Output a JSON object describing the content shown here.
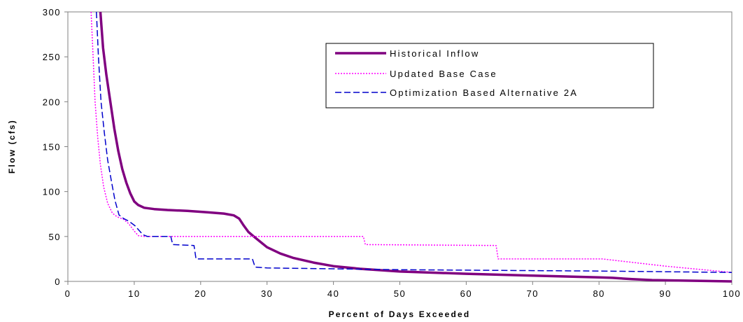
{
  "chart_data": {
    "type": "line",
    "title": "",
    "xlabel": "Percent of Days Exceeded",
    "ylabel": "Flow (cfs)",
    "xlim": [
      0,
      100
    ],
    "ylim": [
      0,
      300
    ],
    "x_ticks": [
      0,
      10,
      20,
      30,
      40,
      50,
      60,
      70,
      80,
      90,
      100
    ],
    "y_ticks": [
      0,
      50,
      100,
      150,
      200,
      250,
      300
    ],
    "grid": false,
    "legend_position": "top-right",
    "series": [
      {
        "name": "Historical Inflow",
        "color": "#800080",
        "style": "solid-thick",
        "points": [
          [
            4.9,
            300
          ],
          [
            5.3,
            260
          ],
          [
            5.8,
            230
          ],
          [
            6.4,
            200
          ],
          [
            7,
            170
          ],
          [
            7.6,
            145
          ],
          [
            8.2,
            125
          ],
          [
            8.8,
            110
          ],
          [
            9.4,
            98
          ],
          [
            10,
            89
          ],
          [
            10.6,
            85
          ],
          [
            11.5,
            82
          ],
          [
            13,
            80.5
          ],
          [
            15,
            79.5
          ],
          [
            18,
            78.5
          ],
          [
            21,
            77
          ],
          [
            23.5,
            75.5
          ],
          [
            25,
            73.5
          ],
          [
            25.8,
            70
          ],
          [
            26.5,
            62
          ],
          [
            27.2,
            55
          ],
          [
            28,
            50
          ],
          [
            29,
            44
          ],
          [
            30,
            38
          ],
          [
            32,
            31
          ],
          [
            34,
            26
          ],
          [
            37,
            21
          ],
          [
            40,
            17
          ],
          [
            44,
            14
          ],
          [
            50,
            11
          ],
          [
            60,
            8.5
          ],
          [
            70,
            6.5
          ],
          [
            80,
            4.5
          ],
          [
            82,
            4
          ],
          [
            85,
            2.5
          ],
          [
            88,
            1.5
          ],
          [
            92,
            1
          ],
          [
            100,
            0
          ]
        ]
      },
      {
        "name": "Updated Base Case",
        "color": "#ff00ff",
        "style": "dotted",
        "points": [
          [
            3.5,
            300
          ],
          [
            3.8,
            250
          ],
          [
            4.1,
            200
          ],
          [
            4.5,
            160
          ],
          [
            4.9,
            130
          ],
          [
            5.4,
            105
          ],
          [
            6,
            87
          ],
          [
            6.7,
            76
          ],
          [
            7.4,
            72
          ],
          [
            8.4,
            69
          ],
          [
            9.2,
            64
          ],
          [
            10,
            56
          ],
          [
            10.6,
            51
          ],
          [
            11.5,
            50
          ],
          [
            44.5,
            50
          ],
          [
            44.8,
            41
          ],
          [
            64.5,
            40
          ],
          [
            64.8,
            25
          ],
          [
            80.5,
            25
          ],
          [
            90,
            17
          ],
          [
            100,
            10
          ]
        ]
      },
      {
        "name": "Optimization Based Alternative 2A",
        "color": "#0000cc",
        "style": "dashed",
        "points": [
          [
            4.3,
            300
          ],
          [
            4.6,
            250
          ],
          [
            5,
            200
          ],
          [
            5.5,
            165
          ],
          [
            6,
            135
          ],
          [
            6.6,
            110
          ],
          [
            7.1,
            90
          ],
          [
            7.7,
            74
          ],
          [
            8.4,
            70
          ],
          [
            9.2,
            67
          ],
          [
            10.1,
            62
          ],
          [
            11.3,
            52
          ],
          [
            12,
            50
          ],
          [
            15.5,
            50
          ],
          [
            15.8,
            41
          ],
          [
            19,
            40
          ],
          [
            19.3,
            25
          ],
          [
            27.8,
            25
          ],
          [
            28.2,
            16
          ],
          [
            30,
            15
          ],
          [
            40,
            14
          ],
          [
            50,
            13
          ],
          [
            70,
            12
          ],
          [
            80,
            11.5
          ],
          [
            100,
            10
          ]
        ]
      }
    ]
  }
}
